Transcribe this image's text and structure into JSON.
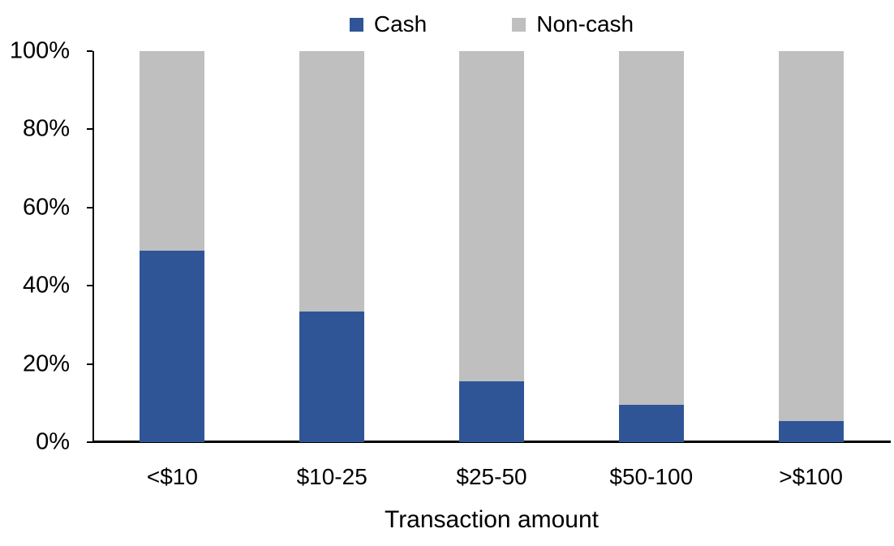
{
  "chart_data": {
    "type": "bar",
    "subtype": "stacked-100-percent",
    "title": "",
    "categories": [
      "<$10",
      "$10-25",
      "$25-50",
      "$50-100",
      ">$100"
    ],
    "series": [
      {
        "name": "Cash",
        "color": "#2F5597",
        "values": [
          49,
          33.5,
          15.5,
          9.5,
          5.5
        ]
      },
      {
        "name": "Non-cash",
        "color": "#BFBFBF",
        "values": [
          51,
          66.5,
          84.5,
          90.5,
          94.5
        ]
      }
    ],
    "xlabel": "Transaction amount",
    "ylabel": "",
    "ylim": [
      0,
      100
    ],
    "y_ticks": [
      {
        "label": "0%",
        "value": 0
      },
      {
        "label": "20%",
        "value": 20
      },
      {
        "label": "40%",
        "value": 40
      },
      {
        "label": "60%",
        "value": 60
      },
      {
        "label": "80%",
        "value": 80
      },
      {
        "label": "100%",
        "value": 100
      }
    ],
    "legend_position": "top-center",
    "grid": false,
    "axis_color": "#000000",
    "text_color": "#000000",
    "background_color": "#FFFFFF"
  }
}
